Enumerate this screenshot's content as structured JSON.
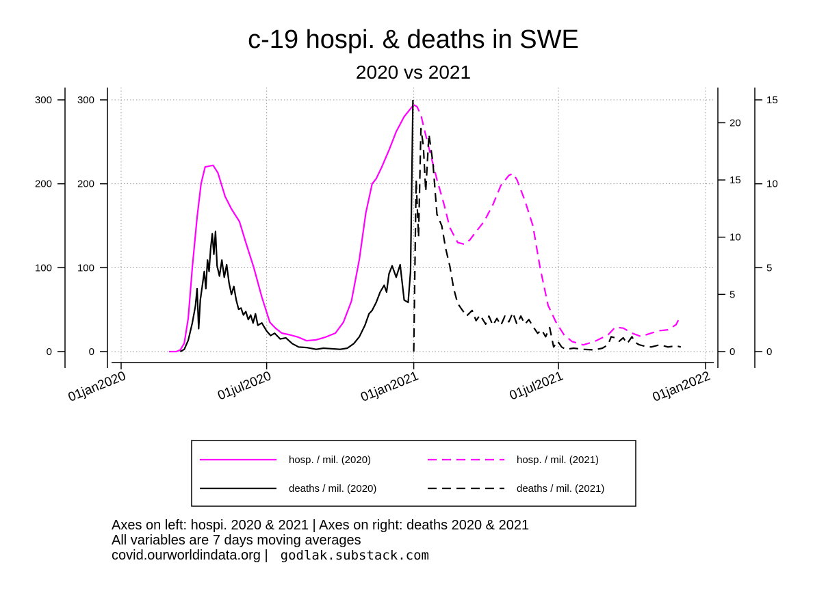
{
  "chart_data": {
    "type": "line",
    "title": "c-19 hospi. & deaths in SWE",
    "subtitle": "2020 vs 2021",
    "x_axis": {
      "type": "date",
      "range": [
        "2020-01-01",
        "2022-01-01"
      ],
      "ticks": [
        "2020-01-01",
        "2020-07-01",
        "2021-01-01",
        "2021-07-01",
        "2022-01-01"
      ],
      "tick_labels": [
        "01jan2020",
        "01jul2020",
        "01jan2021",
        "01jul2021",
        "01jan2022"
      ]
    },
    "y_axes": [
      {
        "id": "hosp_outer",
        "side": "left",
        "range": [
          0,
          300
        ],
        "ticks": [
          0,
          100,
          200,
          300
        ]
      },
      {
        "id": "hosp_inner",
        "side": "left",
        "range": [
          0,
          300
        ],
        "ticks": [
          0,
          100,
          200,
          300
        ]
      },
      {
        "id": "deaths_inner",
        "side": "right",
        "range": [
          0,
          22
        ],
        "ticks": [
          0,
          5,
          10,
          15,
          20
        ]
      },
      {
        "id": "deaths_outer",
        "side": "right",
        "range": [
          0,
          15
        ],
        "ticks": [
          0,
          5,
          10,
          15
        ]
      }
    ],
    "grid": true,
    "legend_position": "bottom",
    "series": [
      {
        "name": "hosp. / mil. (2020)",
        "axis": "hosp_inner",
        "color": "#ff00ff",
        "dash": "solid",
        "points": [
          [
            "2020-03-01",
            0
          ],
          [
            "2020-03-10",
            0
          ],
          [
            "2020-03-15",
            2
          ],
          [
            "2020-03-20",
            10
          ],
          [
            "2020-03-25",
            40
          ],
          [
            "2020-03-30",
            100
          ],
          [
            "2020-04-05",
            160
          ],
          [
            "2020-04-10",
            200
          ],
          [
            "2020-04-15",
            220
          ],
          [
            "2020-04-25",
            222
          ],
          [
            "2020-05-01",
            213
          ],
          [
            "2020-05-10",
            185
          ],
          [
            "2020-05-18",
            170
          ],
          [
            "2020-05-28",
            155
          ],
          [
            "2020-06-05",
            130
          ],
          [
            "2020-06-15",
            100
          ],
          [
            "2020-06-25",
            65
          ],
          [
            "2020-07-05",
            35
          ],
          [
            "2020-07-12",
            28
          ],
          [
            "2020-07-20",
            22
          ],
          [
            "2020-07-30",
            20
          ],
          [
            "2020-08-10",
            17
          ],
          [
            "2020-08-20",
            13
          ],
          [
            "2020-09-01",
            14
          ],
          [
            "2020-09-12",
            17
          ],
          [
            "2020-09-25",
            22
          ],
          [
            "2020-10-05",
            35
          ],
          [
            "2020-10-15",
            60
          ],
          [
            "2020-10-25",
            110
          ],
          [
            "2020-11-02",
            165
          ],
          [
            "2020-11-10",
            200
          ],
          [
            "2020-11-15",
            206
          ],
          [
            "2020-11-22",
            220
          ],
          [
            "2020-12-01",
            240
          ],
          [
            "2020-12-10",
            262
          ],
          [
            "2020-12-20",
            280
          ],
          [
            "2020-12-31",
            293
          ]
        ]
      },
      {
        "name": "deaths / mil. (2020)",
        "axis": "deaths_inner",
        "color": "#000000",
        "dash": "solid",
        "points": [
          [
            "2020-03-15",
            0
          ],
          [
            "2020-03-20",
            0.2
          ],
          [
            "2020-03-25",
            1
          ],
          [
            "2020-03-30",
            2.5
          ],
          [
            "2020-04-03",
            4
          ],
          [
            "2020-04-05",
            5.5
          ],
          [
            "2020-04-07",
            2
          ],
          [
            "2020-04-09",
            4.5
          ],
          [
            "2020-04-12",
            6
          ],
          [
            "2020-04-14",
            7
          ],
          [
            "2020-04-16",
            5.5
          ],
          [
            "2020-04-18",
            8
          ],
          [
            "2020-04-20",
            7
          ],
          [
            "2020-04-22",
            9
          ],
          [
            "2020-04-24",
            10.3
          ],
          [
            "2020-04-26",
            8.5
          ],
          [
            "2020-04-28",
            10.5
          ],
          [
            "2020-04-30",
            7.5
          ],
          [
            "2020-05-03",
            6.6
          ],
          [
            "2020-05-06",
            8
          ],
          [
            "2020-05-09",
            6.5
          ],
          [
            "2020-05-12",
            7.6
          ],
          [
            "2020-05-15",
            6
          ],
          [
            "2020-05-18",
            5
          ],
          [
            "2020-05-21",
            5.7
          ],
          [
            "2020-05-24",
            4.5
          ],
          [
            "2020-05-27",
            3.7
          ],
          [
            "2020-05-30",
            3.8
          ],
          [
            "2020-06-02",
            3.2
          ],
          [
            "2020-06-05",
            3.5
          ],
          [
            "2020-06-08",
            2.8
          ],
          [
            "2020-06-11",
            3.2
          ],
          [
            "2020-06-14",
            2.5
          ],
          [
            "2020-06-17",
            3.3
          ],
          [
            "2020-06-20",
            2.3
          ],
          [
            "2020-06-25",
            2.5
          ],
          [
            "2020-07-01",
            1.8
          ],
          [
            "2020-07-06",
            1.4
          ],
          [
            "2020-07-11",
            1.6
          ],
          [
            "2020-07-18",
            1.1
          ],
          [
            "2020-07-25",
            1.2
          ],
          [
            "2020-08-02",
            0.7
          ],
          [
            "2020-08-10",
            0.4
          ],
          [
            "2020-08-20",
            0.35
          ],
          [
            "2020-09-01",
            0.2
          ],
          [
            "2020-09-10",
            0.3
          ],
          [
            "2020-09-20",
            0.25
          ],
          [
            "2020-10-01",
            0.2
          ],
          [
            "2020-10-10",
            0.3
          ],
          [
            "2020-10-18",
            0.7
          ],
          [
            "2020-10-25",
            1.3
          ],
          [
            "2020-11-01",
            2.3
          ],
          [
            "2020-11-06",
            3.3
          ],
          [
            "2020-11-10",
            3.6
          ],
          [
            "2020-11-15",
            4.3
          ],
          [
            "2020-11-20",
            5.2
          ],
          [
            "2020-11-25",
            5.8
          ],
          [
            "2020-11-28",
            5.2
          ],
          [
            "2020-12-01",
            6.8
          ],
          [
            "2020-12-05",
            7.5
          ],
          [
            "2020-12-10",
            6.5
          ],
          [
            "2020-12-15",
            7.6
          ],
          [
            "2020-12-20",
            4.5
          ],
          [
            "2020-12-25",
            4.3
          ],
          [
            "2020-12-28",
            7
          ],
          [
            "2020-12-31",
            22
          ]
        ]
      },
      {
        "name": "hosp. / mil. (2021)",
        "axis": "hosp_inner",
        "color": "#ff00ff",
        "dash": "dashed",
        "points": [
          [
            "2021-01-01",
            294
          ],
          [
            "2021-01-05",
            292
          ],
          [
            "2021-01-10",
            282
          ],
          [
            "2021-01-15",
            262
          ],
          [
            "2021-01-22",
            235
          ],
          [
            "2021-01-30",
            205
          ],
          [
            "2021-02-08",
            175
          ],
          [
            "2021-02-15",
            148
          ],
          [
            "2021-02-25",
            130
          ],
          [
            "2021-03-05",
            128
          ],
          [
            "2021-03-12",
            133
          ],
          [
            "2021-03-20",
            143
          ],
          [
            "2021-03-30",
            155
          ],
          [
            "2021-04-10",
            175
          ],
          [
            "2021-04-20",
            198
          ],
          [
            "2021-04-30",
            210
          ],
          [
            "2021-05-05",
            212
          ],
          [
            "2021-05-10",
            205
          ],
          [
            "2021-05-20",
            180
          ],
          [
            "2021-05-30",
            150
          ],
          [
            "2021-06-08",
            100
          ],
          [
            "2021-06-18",
            55
          ],
          [
            "2021-06-28",
            35
          ],
          [
            "2021-07-08",
            20
          ],
          [
            "2021-07-18",
            12
          ],
          [
            "2021-08-01",
            8
          ],
          [
            "2021-08-15",
            12
          ],
          [
            "2021-09-01",
            20
          ],
          [
            "2021-09-10",
            29
          ],
          [
            "2021-09-20",
            28
          ],
          [
            "2021-10-01",
            22
          ],
          [
            "2021-10-12",
            18
          ],
          [
            "2021-10-25",
            22
          ],
          [
            "2021-11-05",
            25
          ],
          [
            "2021-11-15",
            26
          ],
          [
            "2021-11-25",
            32
          ],
          [
            "2021-12-01",
            43
          ]
        ]
      },
      {
        "name": "deaths / mil. (2021)",
        "axis": "deaths_inner",
        "color": "#000000",
        "dash": "dashed",
        "points": [
          [
            "2021-01-01",
            0
          ],
          [
            "2021-01-04",
            15
          ],
          [
            "2021-01-07",
            10
          ],
          [
            "2021-01-10",
            19.5
          ],
          [
            "2021-01-13",
            18
          ],
          [
            "2021-01-16",
            14
          ],
          [
            "2021-01-20",
            19
          ],
          [
            "2021-01-25",
            16.5
          ],
          [
            "2021-01-30",
            12
          ],
          [
            "2021-02-05",
            11
          ],
          [
            "2021-02-10",
            9
          ],
          [
            "2021-02-15",
            7.5
          ],
          [
            "2021-02-20",
            5.5
          ],
          [
            "2021-02-25",
            4.2
          ],
          [
            "2021-03-02",
            3.7
          ],
          [
            "2021-03-08",
            3.1
          ],
          [
            "2021-03-15",
            3.6
          ],
          [
            "2021-03-20",
            2.7
          ],
          [
            "2021-03-25",
            3.2
          ],
          [
            "2021-04-01",
            2.4
          ],
          [
            "2021-04-05",
            3.1
          ],
          [
            "2021-04-10",
            2.3
          ],
          [
            "2021-04-15",
            2.9
          ],
          [
            "2021-04-20",
            2.3
          ],
          [
            "2021-04-25",
            3.1
          ],
          [
            "2021-04-30",
            2.6
          ],
          [
            "2021-05-05",
            3.4
          ],
          [
            "2021-05-10",
            2.4
          ],
          [
            "2021-05-15",
            3.1
          ],
          [
            "2021-05-20",
            2.4
          ],
          [
            "2021-05-25",
            2.8
          ],
          [
            "2021-05-30",
            2.2
          ],
          [
            "2021-06-05",
            1.6
          ],
          [
            "2021-06-10",
            1.9
          ],
          [
            "2021-06-15",
            1.3
          ],
          [
            "2021-06-20",
            2.1
          ],
          [
            "2021-06-25",
            0.4
          ],
          [
            "2021-06-30",
            0.9
          ],
          [
            "2021-07-05",
            0.4
          ],
          [
            "2021-07-10",
            0.2
          ],
          [
            "2021-07-20",
            0.3
          ],
          [
            "2021-08-01",
            0.2
          ],
          [
            "2021-08-15",
            0.15
          ],
          [
            "2021-08-25",
            0.3
          ],
          [
            "2021-09-01",
            0.6
          ],
          [
            "2021-09-05",
            1.3
          ],
          [
            "2021-09-10",
            1.2
          ],
          [
            "2021-09-15",
            0.9
          ],
          [
            "2021-09-20",
            1.2
          ],
          [
            "2021-09-25",
            0.7
          ],
          [
            "2021-10-01",
            1.3
          ],
          [
            "2021-10-05",
            0.8
          ],
          [
            "2021-10-10",
            0.6
          ],
          [
            "2021-10-15",
            0.5
          ],
          [
            "2021-10-25",
            0.4
          ],
          [
            "2021-11-05",
            0.6
          ],
          [
            "2021-11-15",
            0.4
          ],
          [
            "2021-11-25",
            0.5
          ],
          [
            "2021-12-01",
            0.4
          ]
        ]
      }
    ],
    "legend": [
      {
        "series": 0,
        "label": "hosp. / mil. (2020)"
      },
      {
        "series": 2,
        "label": "hosp. / mil. (2021)"
      },
      {
        "series": 1,
        "label": "deaths / mil. (2020)"
      },
      {
        "series": 3,
        "label": "deaths / mil. (2021)"
      }
    ]
  },
  "notes": {
    "line1": "Axes on left: hospi. 2020 & 2021 | Axes on right: deaths 2020 & 2021",
    "line2": "All variables are 7 days moving averages",
    "line3": "covid.ourworldindata.org |",
    "handle": "godlak.substack.com"
  }
}
